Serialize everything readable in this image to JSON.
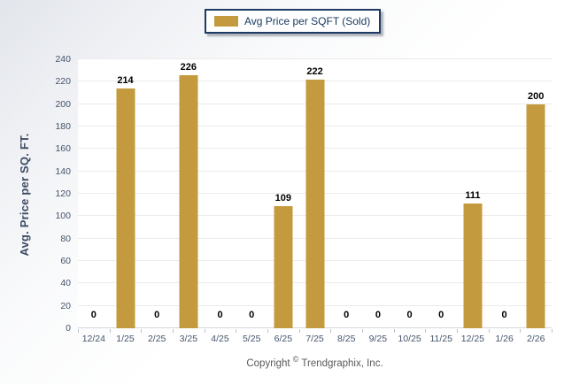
{
  "legend": {
    "label": "Avg Price per SQFT (Sold)",
    "swatch_color": "#c49a3e",
    "border_color": "#1f3a63"
  },
  "chart_data": {
    "type": "bar",
    "title": "Avg Price per SQFT (Sold)",
    "categories": [
      "12/24",
      "1/25",
      "2/25",
      "3/25",
      "4/25",
      "5/25",
      "6/25",
      "7/25",
      "8/25",
      "9/25",
      "10/25",
      "11/25",
      "12/25",
      "1/26",
      "2/26"
    ],
    "values": [
      0,
      214,
      0,
      226,
      0,
      0,
      109,
      222,
      0,
      0,
      0,
      0,
      111,
      0,
      200
    ],
    "xlabel": "",
    "ylabel": "Avg. Price per SQ. FT.",
    "ylim": [
      0,
      240
    ],
    "yticks": [
      0,
      20,
      40,
      60,
      80,
      100,
      120,
      140,
      160,
      180,
      200,
      220,
      240
    ],
    "grid": true,
    "legend_position": "top-center",
    "bar_color": "#c49a3e",
    "value_label_color": "#000000",
    "tick_label_color": "#44546a",
    "gridline_color": "#ebebeb"
  },
  "footer": {
    "copyright_pre": "Copyright ",
    "copyright_symbol": "©",
    "copyright_post": " Trendgraphix, Inc."
  }
}
